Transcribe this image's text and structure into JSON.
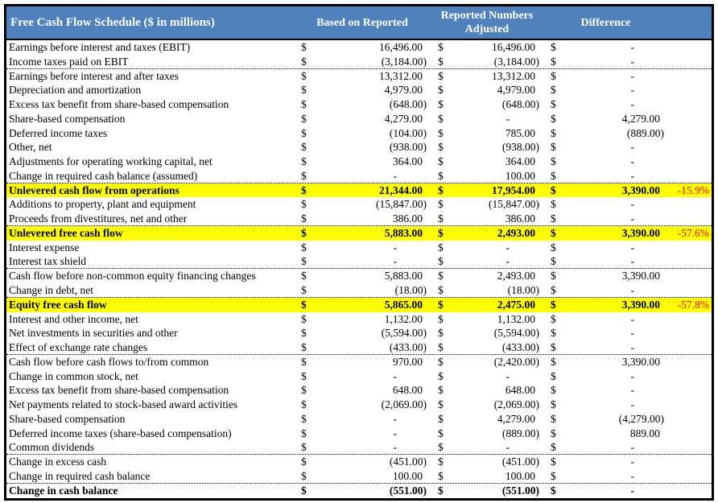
{
  "header": {
    "title": "Free Cash Flow Schedule ($ in millions)",
    "columns": [
      "Based on Reported",
      "Reported Numbers Adjusted",
      "Difference"
    ]
  },
  "currency_symbol": "$",
  "colors": {
    "header_bg": "#4F81BD",
    "header_text": "#FFFFFF",
    "highlight_bg": "#FFFF00",
    "pct_text": "#FF0000"
  },
  "rows": [
    {
      "label": "Earnings before interest and taxes (EBIT)",
      "based": "16,496.00",
      "adjusted": "16,496.00",
      "difference": "-",
      "pct": "",
      "style": "normal",
      "sep": false
    },
    {
      "label": "Income taxes paid on EBIT",
      "based": "(3,184.00)",
      "adjusted": "(3,184.00)",
      "difference": "-",
      "pct": "",
      "style": "normal",
      "sep": true
    },
    {
      "label": "Earnings before interest and after taxes",
      "based": "13,312.00",
      "adjusted": "13,312.00",
      "difference": "-",
      "pct": "",
      "style": "normal",
      "sep": false
    },
    {
      "label": "Depreciation and amortization",
      "based": "4,979.00",
      "adjusted": "4,979.00",
      "difference": "-",
      "pct": "",
      "style": "normal",
      "sep": false
    },
    {
      "label": "Excess tax benefit from share-based compensation",
      "based": "(648.00)",
      "adjusted": "(648.00)",
      "difference": "-",
      "pct": "",
      "style": "normal",
      "sep": false
    },
    {
      "label": "Share-based compensation",
      "based": "4,279.00",
      "adjusted": "-",
      "difference": "4,279.00",
      "pct": "",
      "style": "normal",
      "sep": false
    },
    {
      "label": "Deferred income taxes",
      "based": "(104.00)",
      "adjusted": "785.00",
      "difference": "(889.00)",
      "pct": "",
      "style": "normal",
      "sep": false
    },
    {
      "label": "Other, net",
      "based": "(938.00)",
      "adjusted": "(938.00)",
      "difference": "-",
      "pct": "",
      "style": "normal",
      "sep": false
    },
    {
      "label": "Adjustments for operating working capital, net",
      "based": "364.00",
      "adjusted": "364.00",
      "difference": "-",
      "pct": "",
      "style": "normal",
      "sep": false
    },
    {
      "label": "Change in required cash balance (assumed)",
      "based": "-",
      "adjusted": "100.00",
      "difference": "-",
      "pct": "",
      "style": "normal",
      "sep": true
    },
    {
      "label": "Unlevered cash flow from operations",
      "based": "21,344.00",
      "adjusted": "17,954.00",
      "difference": "3,390.00",
      "pct": "-15.9%",
      "style": "highlight",
      "sep": false
    },
    {
      "label": "Additions to property, plant and equipment",
      "based": "(15,847.00)",
      "adjusted": "(15,847.00)",
      "difference": "-",
      "pct": "",
      "style": "normal",
      "sep": false
    },
    {
      "label": "Proceeds from divestitures, net and other",
      "based": "386.00",
      "adjusted": "386.00",
      "difference": "-",
      "pct": "",
      "style": "normal",
      "sep": true
    },
    {
      "label": "Unlevered free cash flow",
      "based": "5,883.00",
      "adjusted": "2,493.00",
      "difference": "3,390.00",
      "pct": "-57.6%",
      "style": "highlight",
      "sep": false
    },
    {
      "label": "Interest expense",
      "based": "-",
      "adjusted": "-",
      "difference": "-",
      "pct": "",
      "style": "normal",
      "sep": false
    },
    {
      "label": "Interest tax shield",
      "based": "-",
      "adjusted": "-",
      "difference": "-",
      "pct": "",
      "style": "normal",
      "sep": true
    },
    {
      "label": "Cash flow before non-common equity financing changes",
      "based": "5,883.00",
      "adjusted": "2,493.00",
      "difference": "3,390.00",
      "pct": "",
      "style": "normal",
      "sep": false
    },
    {
      "label": "Change in debt, net",
      "based": "(18.00)",
      "adjusted": "(18.00)",
      "difference": "-",
      "pct": "",
      "style": "normal",
      "sep": true
    },
    {
      "label": "Equity free cash flow",
      "based": "5,865.00",
      "adjusted": "2,475.00",
      "difference": "3,390.00",
      "pct": "-57.8%",
      "style": "highlight",
      "sep": false
    },
    {
      "label": "Interest and other income, net",
      "based": "1,132.00",
      "adjusted": "1,132.00",
      "difference": "-",
      "pct": "",
      "style": "normal",
      "sep": false
    },
    {
      "label": "Net investments in securities and other",
      "based": "(5,594.00)",
      "adjusted": "(5,594.00)",
      "difference": "-",
      "pct": "",
      "style": "normal",
      "sep": false
    },
    {
      "label": "Effect of exchange rate changes",
      "based": "(433.00)",
      "adjusted": "(433.00)",
      "difference": "-",
      "pct": "",
      "style": "normal",
      "sep": true
    },
    {
      "label": "Cash flow before cash flows to/from common",
      "based": "970.00",
      "adjusted": "(2,420.00)",
      "difference": "3,390.00",
      "pct": "",
      "style": "normal",
      "sep": false
    },
    {
      "label": "Change in common stock, net",
      "based": "-",
      "adjusted": "-",
      "difference": "-",
      "pct": "",
      "style": "normal",
      "sep": false
    },
    {
      "label": "Excess tax benefit from share-based compensation",
      "based": "648.00",
      "adjusted": "648.00",
      "difference": "-",
      "pct": "",
      "style": "normal",
      "sep": false
    },
    {
      "label": "Net payments related to stock-based award activities",
      "based": "(2,069.00)",
      "adjusted": "(2,069.00)",
      "difference": "-",
      "pct": "",
      "style": "normal",
      "sep": false
    },
    {
      "label": "Share-based compensation",
      "based": "-",
      "adjusted": "4,279.00",
      "difference": "(4,279.00)",
      "pct": "",
      "style": "normal",
      "sep": false
    },
    {
      "label": "Deferred income taxes (share-based compensation)",
      "based": "-",
      "adjusted": "(889.00)",
      "difference": "889.00",
      "pct": "",
      "style": "normal",
      "sep": false
    },
    {
      "label": "Common dividends",
      "based": "-",
      "adjusted": "-",
      "difference": "-",
      "pct": "",
      "style": "normal",
      "sep": true
    },
    {
      "label": "Change in excess cash",
      "based": "(451.00)",
      "adjusted": "(451.00)",
      "difference": "-",
      "pct": "",
      "style": "normal",
      "sep": false
    },
    {
      "label": "Change in required cash balance",
      "based": "100.00",
      "adjusted": "100.00",
      "difference": "-",
      "pct": "",
      "style": "normal",
      "sep": true
    },
    {
      "label": "Change in cash balance",
      "based": "(551.00)",
      "adjusted": "(551.00)",
      "difference": "-",
      "pct": "",
      "style": "total",
      "sep": false
    }
  ]
}
